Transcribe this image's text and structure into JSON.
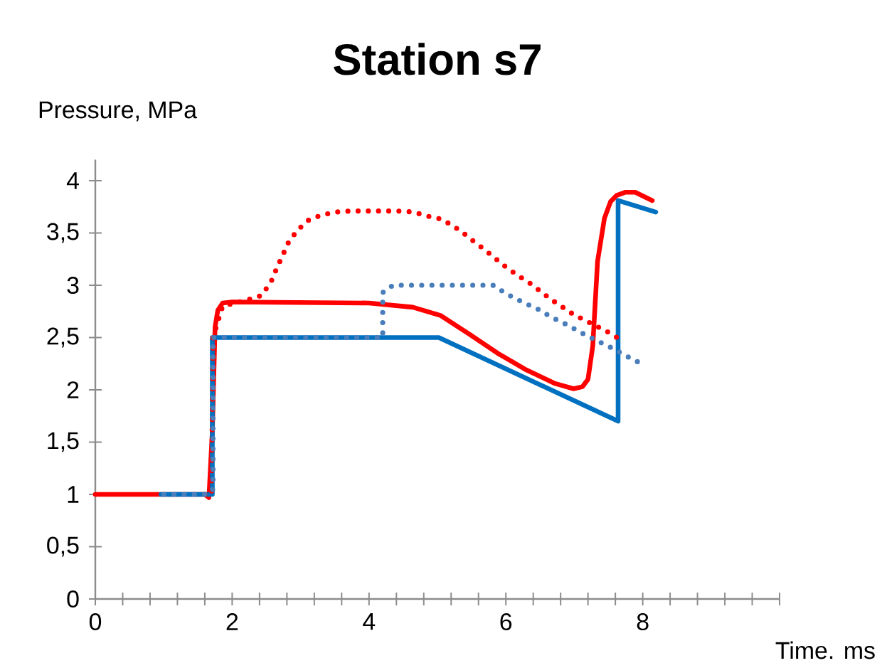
{
  "chart_data": {
    "type": "line",
    "title": "Station s7",
    "xlabel": "Time. ms",
    "ylabel": "Pressure, MPa",
    "xlim": [
      0,
      10
    ],
    "ylim": [
      0,
      4.2
    ],
    "xticks": [
      0,
      {
        "value": 0.4,
        "label": null
      },
      {
        "value": 0.8,
        "label": null
      },
      {
        "value": 1.2,
        "label": null
      },
      {
        "value": 1.6,
        "label": null
      },
      2,
      {
        "value": 2.4,
        "label": null
      },
      {
        "value": 2.8,
        "label": null
      },
      {
        "value": 3.2,
        "label": null
      },
      {
        "value": 3.6,
        "label": null
      },
      4,
      {
        "value": 4.4,
        "label": null
      },
      {
        "value": 4.8,
        "label": null
      },
      {
        "value": 5.2,
        "label": null
      },
      {
        "value": 5.6,
        "label": null
      },
      6,
      {
        "value": 6.4,
        "label": null
      },
      {
        "value": 6.8,
        "label": null
      },
      {
        "value": 7.2,
        "label": null
      },
      {
        "value": 7.6,
        "label": null
      },
      8,
      {
        "value": 8.4,
        "label": null
      },
      {
        "value": 8.8,
        "label": null
      },
      {
        "value": 9.2,
        "label": null
      },
      {
        "value": 9.6,
        "label": null
      },
      {
        "value": 10,
        "label": null
      }
    ],
    "yticks": [
      0,
      {
        "value": 0.5,
        "label": "0,5"
      },
      1,
      {
        "value": 1.5,
        "label": "1,5"
      },
      2,
      {
        "value": 2.5,
        "label": "2,5"
      },
      3,
      {
        "value": 3.5,
        "label": "3,5"
      },
      4
    ],
    "grid": false,
    "marker": "none",
    "series": [
      {
        "color": "#ff0000",
        "line_style": "solid",
        "x": [
          0,
          1.6,
          1.66,
          1.71,
          1.75,
          1.79,
          1.86,
          2.0,
          4.0,
          4.64,
          5.05,
          5.47,
          5.88,
          6.3,
          6.72,
          6.99,
          7.12,
          7.2,
          7.27,
          7.34,
          7.44,
          7.53,
          7.62,
          7.75,
          7.89,
          8.14
        ],
        "values": [
          1,
          1,
          0.97,
          1.6,
          2.6,
          2.76,
          2.83,
          2.84,
          2.83,
          2.79,
          2.71,
          2.53,
          2.35,
          2.19,
          2.06,
          2.01,
          2.03,
          2.1,
          2.42,
          3.23,
          3.64,
          3.8,
          3.86,
          3.89,
          3.89,
          3.81
        ]
      },
      {
        "color": "#0070c0",
        "line_style": "solid",
        "x": [
          0.96,
          1.71,
          1.71,
          5.02,
          7.64,
          7.64,
          8.19
        ],
        "values": [
          1,
          1,
          2.5,
          2.5,
          1.7,
          3.81,
          3.7
        ]
      },
      {
        "color": "#ff0000",
        "line_style": "dotted",
        "x": [
          1.6,
          1.7,
          1.72,
          1.86,
          2.22,
          2.42,
          2.56,
          2.65,
          2.74,
          2.83,
          2.96,
          3.11,
          3.3,
          3.51,
          3.74,
          4.17,
          4.41,
          4.65,
          4.86,
          5.07,
          5.34,
          5.51,
          5.67,
          5.84,
          5.99,
          6.16,
          6.35,
          6.51,
          6.67,
          6.83,
          6.99,
          7.14,
          7.5,
          7.67
        ],
        "values": [
          1,
          1,
          2.5,
          2.8,
          2.86,
          2.9,
          3.02,
          3.16,
          3.29,
          3.42,
          3.53,
          3.62,
          3.67,
          3.7,
          3.71,
          3.71,
          3.71,
          3.7,
          3.66,
          3.63,
          3.52,
          3.43,
          3.35,
          3.26,
          3.18,
          3.1,
          3.02,
          2.94,
          2.86,
          2.79,
          2.72,
          2.67,
          2.55,
          2.48
        ]
      },
      {
        "color": "#4a7ebb",
        "line_style": "dotted",
        "x": [
          1.0,
          1.65,
          1.72,
          1.72,
          4.2,
          4.2,
          4.35,
          5.81,
          6.03,
          6.24,
          6.47,
          6.68,
          6.9,
          7.12,
          7.33,
          7.55,
          7.77,
          7.98
        ],
        "values": [
          1,
          1,
          1.05,
          2.5,
          2.5,
          2.93,
          3.0,
          3.0,
          2.91,
          2.84,
          2.77,
          2.69,
          2.62,
          2.54,
          2.47,
          2.4,
          2.32,
          2.25
        ]
      }
    ]
  }
}
